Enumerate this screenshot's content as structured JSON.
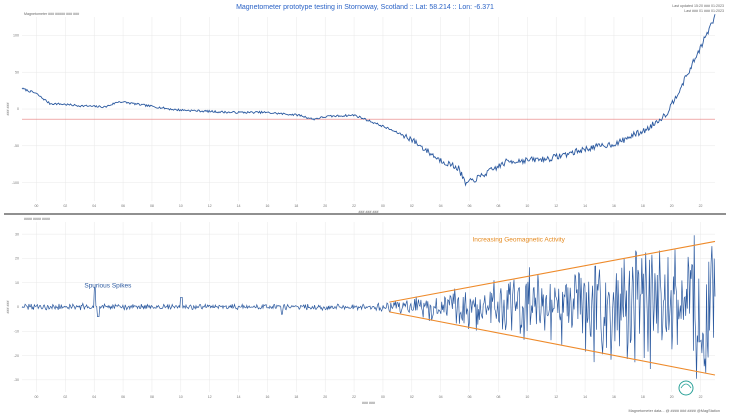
{
  "title": "Magnetometer prototype testing in Stornoway, Scotland :: Lat: 58.214 :: Lon: -6.371",
  "header_right": [
    "Last updated 15:20 ### 01:2023",
    "Last ### 01 ### 01:2023"
  ],
  "credit": "Magnetometer data... @ #### ### #### @MagStation",
  "colors": {
    "line": "#2c5aa0",
    "baseline": "#e77b7b",
    "trend": "#ee8a2a",
    "grid": "#e8e8e8",
    "divider": "#222222",
    "logo": "#2aa198"
  },
  "chart_data": [
    {
      "type": "line",
      "panel": "top",
      "legend_text": "Magnetometer ### ##### ### ###",
      "ylabel": "### ###",
      "xlabel": "### ### ###",
      "y_tick_labels": [
        "100",
        "50",
        "0",
        "-50",
        "-100"
      ],
      "x_tick_labels": [
        "00",
        "02",
        "04",
        "06",
        "08",
        "10",
        "12",
        "14",
        "16",
        "18",
        "20",
        "22",
        "00",
        "02",
        "04",
        "06",
        "08",
        "10",
        "12",
        "14",
        "16",
        "18",
        "20",
        "22"
      ],
      "ylim": [
        -120,
        150
      ],
      "baseline_value": 0,
      "grid": true,
      "series": [
        {
          "x": [
            0,
            2,
            4,
            6,
            8,
            12,
            14,
            18,
            22,
            26,
            30,
            35,
            40,
            42,
            44,
            48,
            52,
            56,
            60,
            63,
            64,
            66,
            70,
            76,
            82,
            86,
            88,
            90,
            93,
            96,
            100
          ],
          "y": [
            45,
            38,
            23,
            22,
            20,
            18,
            26,
            20,
            14,
            12,
            10,
            10,
            6,
            0,
            4,
            6,
            -10,
            -28,
            -58,
            -72,
            -95,
            -85,
            -62,
            -58,
            -42,
            -35,
            -24,
            -16,
            8,
            65,
            150
          ]
        }
      ]
    },
    {
      "type": "line",
      "panel": "bottom",
      "legend_text": "#### #### ####",
      "ylabel": "### ###",
      "xlabel": "### ###",
      "y_tick_labels": [
        "30",
        "20",
        "10",
        "0",
        "-10",
        "-20",
        "-30"
      ],
      "x_tick_labels": [
        "00",
        "02",
        "04",
        "06",
        "08",
        "10",
        "12",
        "14",
        "16",
        "18",
        "20",
        "22",
        "00",
        "02",
        "04",
        "06",
        "08",
        "10",
        "12",
        "14",
        "16",
        "18",
        "20",
        "22"
      ],
      "ylim": [
        -35,
        35
      ],
      "grid": true,
      "annotations": [
        {
          "text": "Spurious Spikes",
          "at": [
            9,
            8
          ]
        },
        {
          "text": "Increasing Geomagnetic Activity",
          "at": [
            65,
            27
          ]
        }
      ],
      "trend_lines": [
        {
          "from": [
            53,
            2
          ],
          "to": [
            100,
            27
          ]
        },
        {
          "from": [
            53,
            -2
          ],
          "to": [
            100,
            -28
          ]
        }
      ],
      "amplitude_envelope": {
        "x": [
          0,
          50,
          53,
          100
        ],
        "amplitude": [
          1.2,
          1.0,
          2,
          28
        ]
      },
      "spikes": [
        {
          "x": 10.5,
          "y": 8
        },
        {
          "x": 11,
          "y": -4
        },
        {
          "x": 23,
          "y": 4
        },
        {
          "x": 37.5,
          "y": -3
        }
      ]
    }
  ]
}
